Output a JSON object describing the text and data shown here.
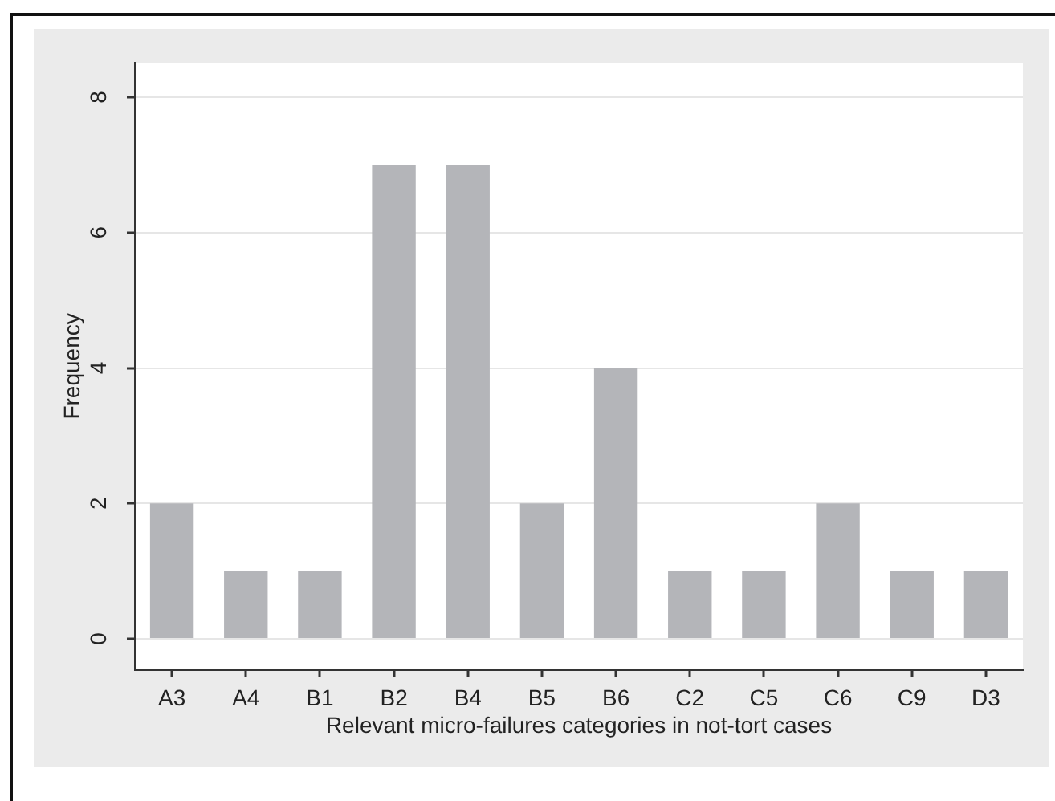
{
  "chart_data": {
    "type": "bar",
    "xlabel": "Relevant micro-failures categories in not-tort cases",
    "ylabel": "Frequency",
    "categories": [
      "A3",
      "A4",
      "B1",
      "B2",
      "B4",
      "B5",
      "B6",
      "C2",
      "C5",
      "C6",
      "C9",
      "D3"
    ],
    "values": [
      2,
      1,
      1,
      7,
      7,
      2,
      4,
      1,
      1,
      2,
      1,
      1
    ],
    "color": "#b4b5b9",
    "ylim": [
      -0.45,
      8.5
    ],
    "yticks": [
      0,
      2,
      4,
      6,
      8
    ],
    "grid": "y"
  }
}
